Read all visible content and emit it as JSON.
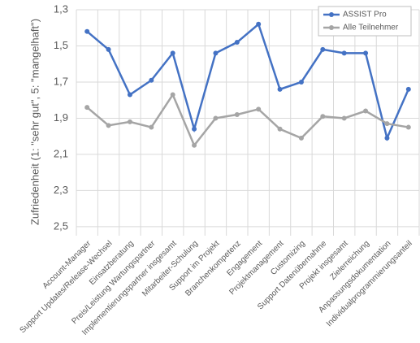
{
  "chart_data": {
    "type": "line",
    "y_label": "Zufriedenheit (1: \"sehr gut\", 5: \"mangelhaft\")",
    "categories": [
      "Account-Manager",
      "Support Updates/Release-Wechsel",
      "Einsatzberatung",
      "Preis/Leistung Wartungspartner",
      "Implementierungspartner insgesamt",
      "Mitarbeiter-Schulung",
      "Support im Projekt",
      "Branchenkompetenz",
      "Engagement",
      "Projektmanagement",
      "Customizing",
      "Support Datenübernahme",
      "Projekt insgesamt",
      "Zielerreichung",
      "Anpassungsdokumentation",
      "Individualprogrammierungsanteil"
    ],
    "series": [
      {
        "name": "ASSIST Pro",
        "color": "#4472c4",
        "values": [
          1.42,
          1.52,
          1.77,
          1.69,
          1.54,
          1.96,
          1.54,
          1.48,
          1.38,
          1.74,
          1.7,
          1.52,
          1.54,
          1.54,
          2.01,
          1.74
        ]
      },
      {
        "name": "Alle Teilnehmer",
        "color": "#a5a5a5",
        "values": [
          1.84,
          1.94,
          1.92,
          1.95,
          1.77,
          2.05,
          1.9,
          1.88,
          1.85,
          1.96,
          2.01,
          1.89,
          1.9,
          1.86,
          1.93,
          1.95
        ]
      }
    ],
    "ylim": [
      1.3,
      2.55
    ],
    "y_reversed": true,
    "yticks": [
      {
        "value": 1.3,
        "label": "1,3"
      },
      {
        "value": 1.5,
        "label": "1,5"
      },
      {
        "value": 1.7,
        "label": "1,7"
      },
      {
        "value": 1.9,
        "label": "1,9"
      },
      {
        "value": 2.1,
        "label": "2,1"
      },
      {
        "value": 2.3,
        "label": "2,3"
      },
      {
        "value": 2.5,
        "label": "2,5"
      }
    ],
    "grid": true,
    "legend": "top-right"
  }
}
